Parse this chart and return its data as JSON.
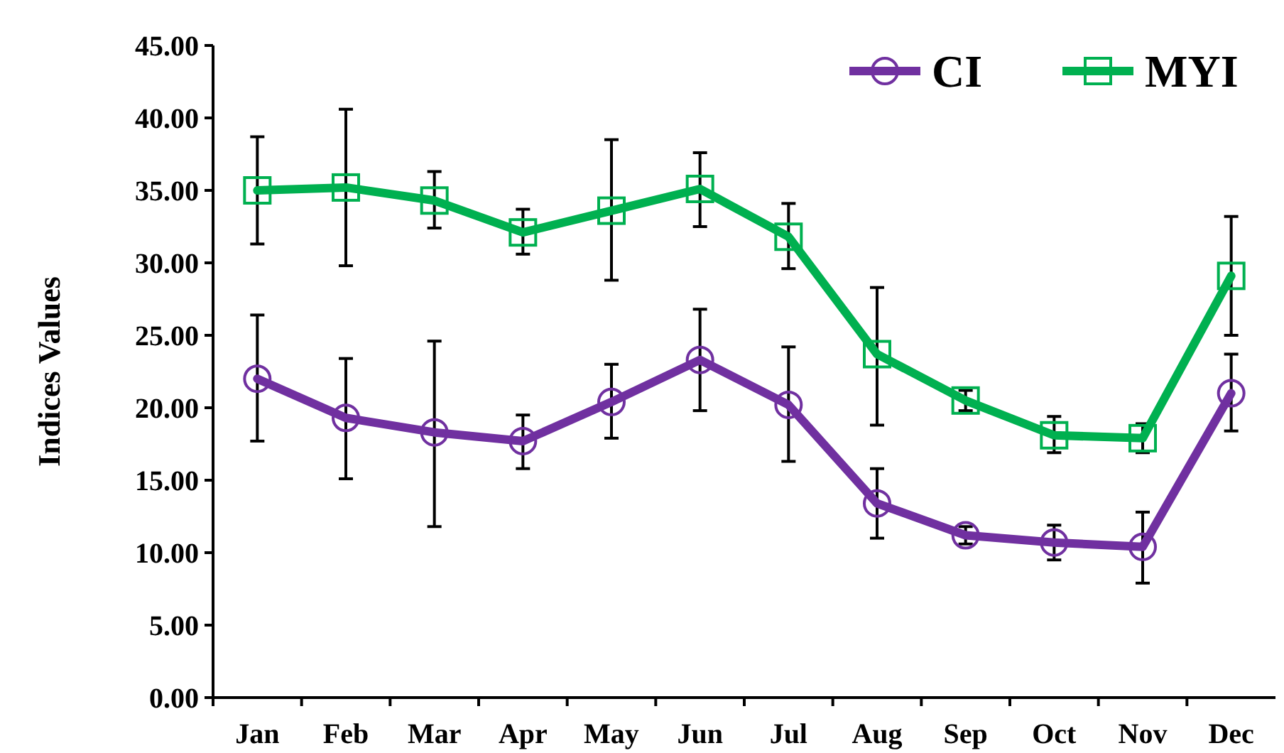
{
  "chart_data": {
    "type": "line",
    "ylabel": "Indices Values",
    "categories": [
      "Jan",
      "Feb",
      "Mar",
      "Apr",
      "May",
      "Jun",
      "Jul",
      "Aug",
      "Sep",
      "Oct",
      "Nov",
      "Dec"
    ],
    "ylim": [
      0,
      45
    ],
    "yticks": [
      {
        "value": 0,
        "label": "0.00"
      },
      {
        "value": 5,
        "label": "5.00"
      },
      {
        "value": 10,
        "label": "10.00"
      },
      {
        "value": 15,
        "label": "15.00"
      },
      {
        "value": 20,
        "label": "20.00"
      },
      {
        "value": 25,
        "label": "25.00"
      },
      {
        "value": 30,
        "label": "30.00"
      },
      {
        "value": 35,
        "label": "35.00"
      },
      {
        "value": 40,
        "label": "40.00"
      },
      {
        "value": 45,
        "label": "45.00"
      }
    ],
    "grid": false,
    "legend": "top right",
    "series": [
      {
        "name": "CI",
        "color": "#7030a0",
        "marker": "circle",
        "values": [
          22.0,
          19.3,
          18.3,
          17.7,
          20.4,
          23.3,
          20.2,
          13.4,
          11.2,
          10.7,
          10.4,
          21.0
        ],
        "errors": [
          [
            17.7,
            26.4
          ],
          [
            15.1,
            23.4
          ],
          [
            11.8,
            24.6
          ],
          [
            15.8,
            19.5
          ],
          [
            17.9,
            23.0
          ],
          [
            19.8,
            26.8
          ],
          [
            16.3,
            24.2
          ],
          [
            11.0,
            15.8
          ],
          [
            10.6,
            11.8
          ],
          [
            9.5,
            11.9
          ],
          [
            7.9,
            12.8
          ],
          [
            18.4,
            23.7
          ]
        ]
      },
      {
        "name": "MYI",
        "color": "#00b050",
        "marker": "square",
        "values": [
          35.0,
          35.2,
          34.3,
          32.1,
          33.6,
          35.1,
          31.8,
          23.7,
          20.5,
          18.1,
          17.9,
          29.1
        ],
        "errors": [
          [
            31.3,
            38.7
          ],
          [
            29.8,
            40.6
          ],
          [
            32.4,
            36.3
          ],
          [
            30.6,
            33.7
          ],
          [
            28.8,
            38.5
          ],
          [
            32.5,
            37.6
          ],
          [
            29.6,
            34.1
          ],
          [
            18.8,
            28.3
          ],
          [
            19.8,
            21.2
          ],
          [
            16.9,
            19.4
          ],
          [
            16.9,
            18.9
          ],
          [
            25.0,
            33.2
          ]
        ]
      }
    ]
  }
}
